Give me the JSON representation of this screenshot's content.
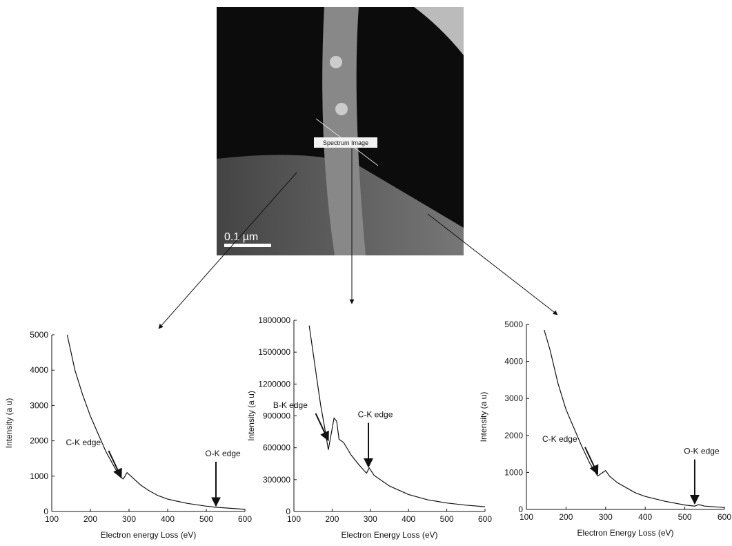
{
  "image": {
    "label": "Spectrum Image",
    "scale_bar": "0.1 µm"
  },
  "chart_data": [
    {
      "type": "line",
      "xlabel": "Electron energy Loss (eV)",
      "ylabel": "Intensity (a u)",
      "color": "#111111",
      "x": [
        140,
        160,
        180,
        200,
        220,
        240,
        260,
        275,
        285,
        295,
        310,
        330,
        350,
        375,
        400,
        450,
        500,
        525,
        550,
        575,
        600
      ],
      "values": [
        5000,
        4000,
        3300,
        2700,
        2200,
        1700,
        1300,
        1000,
        920,
        1100,
        950,
        750,
        600,
        450,
        350,
        230,
        150,
        120,
        100,
        80,
        60
      ],
      "xlim": [
        100,
        600
      ],
      "xticks": [
        100,
        200,
        300,
        400,
        500,
        600
      ],
      "ylim": [
        0,
        5000
      ],
      "yticks": [
        0,
        1000,
        2000,
        3000,
        4000,
        5000
      ],
      "annotations": [
        {
          "text": "C-K edge",
          "x": 280,
          "y": 900
        },
        {
          "text": "O-K edge",
          "x": 525,
          "y": 100
        }
      ]
    },
    {
      "type": "line",
      "xlabel": "Electron Energy Loss (eV)",
      "ylabel": "Intensity (a u)",
      "color": "#111111",
      "x": [
        140,
        150,
        160,
        170,
        180,
        190,
        200,
        205,
        212,
        218,
        230,
        250,
        270,
        290,
        297,
        310,
        350,
        400,
        450,
        500,
        550,
        600
      ],
      "values": [
        1750000,
        1500000,
        1250000,
        1000000,
        800000,
        580000,
        780000,
        880000,
        850000,
        680000,
        650000,
        530000,
        440000,
        360000,
        410000,
        340000,
        240000,
        160000,
        110000,
        80000,
        60000,
        45000
      ],
      "xlim": [
        100,
        600
      ],
      "xticks": [
        100,
        200,
        300,
        400,
        500,
        600
      ],
      "ylim": [
        0,
        1800000
      ],
      "yticks": [
        0,
        300000,
        600000,
        900000,
        1200000,
        1500000,
        1800000
      ],
      "annotations": [
        {
          "text": "B-K edge",
          "x": 190,
          "y": 650000
        },
        {
          "text": "C-K edge",
          "x": 295,
          "y": 400000
        }
      ]
    },
    {
      "type": "line",
      "xlabel": "Electron Energy Loss (eV)",
      "ylabel": "Intensity (a u)",
      "color": "#111111",
      "x": [
        145,
        160,
        180,
        200,
        220,
        240,
        260,
        280,
        290,
        300,
        310,
        330,
        350,
        375,
        400,
        450,
        500,
        525,
        535,
        550,
        575,
        600
      ],
      "values": [
        4850,
        4300,
        3400,
        2700,
        2200,
        1700,
        1250,
        900,
        980,
        1050,
        900,
        720,
        600,
        450,
        350,
        220,
        120,
        90,
        130,
        90,
        70,
        50
      ],
      "xlim": [
        100,
        600
      ],
      "xticks": [
        100,
        200,
        300,
        400,
        500,
        600
      ],
      "ylim": [
        0,
        5000
      ],
      "yticks": [
        0,
        1000,
        2000,
        3000,
        4000,
        5000
      ],
      "annotations": [
        {
          "text": "C-K edge",
          "x": 280,
          "y": 900
        },
        {
          "text": "O-K edge",
          "x": 525,
          "y": 100
        }
      ]
    }
  ]
}
